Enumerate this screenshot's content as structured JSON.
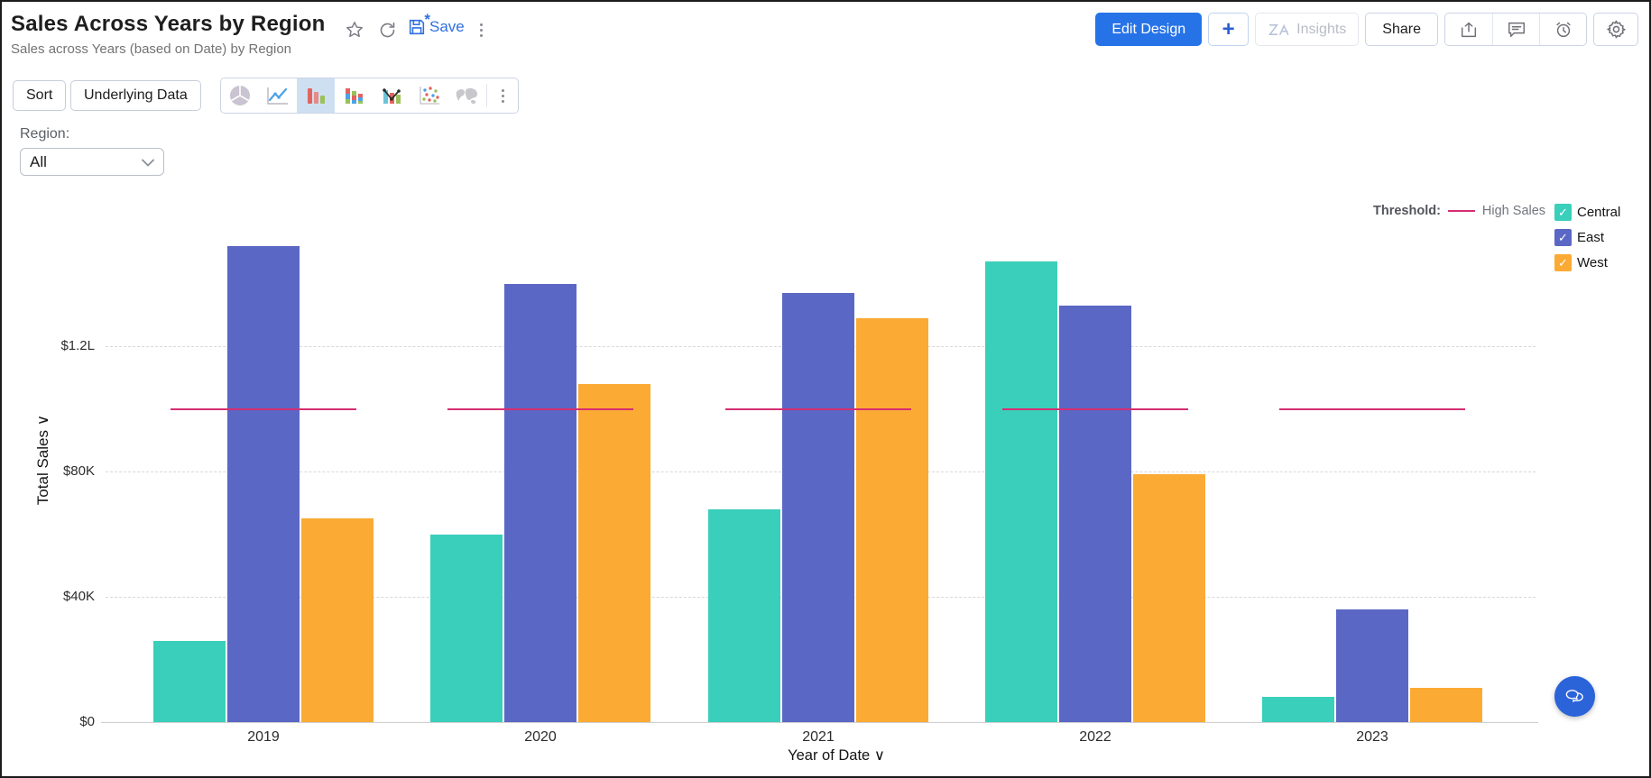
{
  "header": {
    "title": "Sales Across Years by Region",
    "subtitle": "Sales across Years (based on Date) by Region",
    "save_label": "Save",
    "edit_design_label": "Edit Design",
    "plus_label": "+",
    "insights_label": "Insights",
    "share_label": "Share",
    "icon_buttons": [
      "star-icon",
      "refresh-icon",
      "save-icon",
      "more-options-icon",
      "export-icon",
      "comment-icon",
      "alert-icon",
      "settings-icon"
    ]
  },
  "toolbar": {
    "sort_label": "Sort",
    "underlying_data_label": "Underlying Data",
    "chart_types": [
      "pie-chart",
      "line-chart",
      "bar-chart",
      "stacked-bar-chart",
      "combo-chart",
      "scatter-chart",
      "map-chart",
      "more-chart-types"
    ],
    "selected_chart_type": "bar-chart"
  },
  "filter": {
    "label": "Region:",
    "value": "All"
  },
  "chart_data": {
    "type": "bar",
    "categories": [
      "2019",
      "2020",
      "2021",
      "2022",
      "2023"
    ],
    "series": [
      {
        "name": "Central",
        "color": "#3acfba",
        "values": [
          26000,
          60000,
          68000,
          147000,
          8000
        ]
      },
      {
        "name": "East",
        "color": "#5b67c4",
        "values": [
          152000,
          140000,
          137000,
          133000,
          36000
        ]
      },
      {
        "name": "West",
        "color": "#fbaa34",
        "values": [
          65000,
          108000,
          129000,
          79000,
          11000
        ]
      }
    ],
    "threshold": {
      "label": "Threshold:",
      "name": "High Sales",
      "value": 100000,
      "color": "#d62d72"
    },
    "xlabel": "Year of Date",
    "ylabel": "Total Sales",
    "ylim": [
      0,
      160000
    ],
    "yticks": [
      {
        "value": 0,
        "label": "$0"
      },
      {
        "value": 40000,
        "label": "$40K"
      },
      {
        "value": 80000,
        "label": "$80K"
      },
      {
        "value": 120000,
        "label": "$1.2L"
      }
    ],
    "grid": true,
    "legend_position": "right"
  }
}
